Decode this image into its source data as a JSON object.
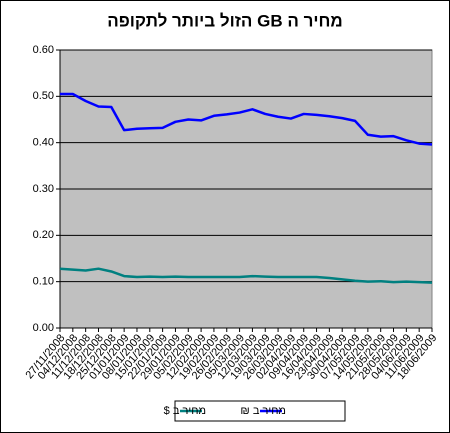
{
  "chart_data": {
    "type": "line",
    "title": "מחיר ה GB הזול ביותר לתקופה",
    "categories": [
      "27/11/2008",
      "04/12/2008",
      "11/12/2008",
      "18/12/2008",
      "25/12/2008",
      "01/01/2009",
      "08/01/2009",
      "15/01/2009",
      "22/01/2009",
      "29/01/2009",
      "05/02/2009",
      "12/02/2009",
      "19/02/2009",
      "26/02/2009",
      "05/03/2009",
      "12/03/2009",
      "19/03/2009",
      "26/03/2009",
      "02/04/2009",
      "09/04/2009",
      "16/04/2009",
      "23/04/2009",
      "30/04/2009",
      "07/05/2009",
      "14/05/2009",
      "21/05/2009",
      "28/05/2009",
      "04/06/2009",
      "11/06/2009",
      "18/06/2009"
    ],
    "series": [
      {
        "name": "מחיר ב $",
        "color": "#008080",
        "values": [
          0.128,
          0.126,
          0.124,
          0.128,
          0.122,
          0.112,
          0.11,
          0.111,
          0.11,
          0.111,
          0.11,
          0.11,
          0.11,
          0.11,
          0.11,
          0.112,
          0.111,
          0.11,
          0.11,
          0.11,
          0.11,
          0.108,
          0.105,
          0.102,
          0.1,
          0.101,
          0.099,
          0.1,
          0.099,
          0.098
        ]
      },
      {
        "name": "מחיר ב ₪",
        "color": "#0000ff",
        "values": [
          0.505,
          0.505,
          0.49,
          0.478,
          0.477,
          0.427,
          0.43,
          0.431,
          0.432,
          0.445,
          0.45,
          0.448,
          0.458,
          0.461,
          0.465,
          0.472,
          0.462,
          0.456,
          0.452,
          0.462,
          0.46,
          0.457,
          0.453,
          0.447,
          0.417,
          0.413,
          0.414,
          0.405,
          0.398,
          0.396
        ]
      }
    ],
    "ylim": [
      0,
      0.6
    ],
    "yticks": [
      {
        "value": 0,
        "label": "0.00"
      },
      {
        "value": 0.1,
        "label": "0.10"
      },
      {
        "value": 0.2,
        "label": "0.20"
      },
      {
        "value": 0.3,
        "label": "0.30"
      },
      {
        "value": 0.4,
        "label": "0.40"
      },
      {
        "value": 0.5,
        "label": "0.50"
      },
      {
        "value": 0.6,
        "label": "0.60"
      }
    ],
    "grid": true,
    "legend": "bottom"
  }
}
